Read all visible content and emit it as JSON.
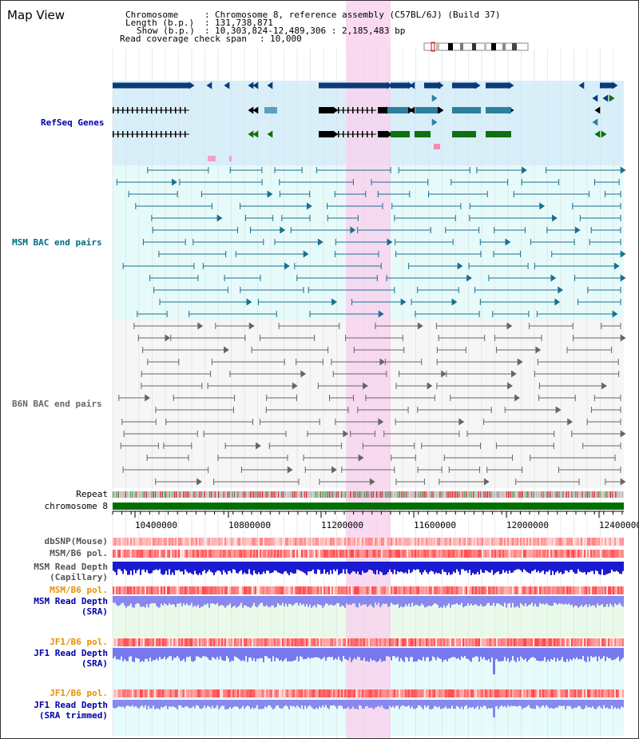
{
  "title": "Map View",
  "info": {
    "chromosome_label": "Chromosome",
    "chromosome_value": "Chromosome 8, reference assembly (C57BL/6J) (Build 37)",
    "length_label": "Length (b.p.)",
    "length_value": "131,738,871",
    "show_label": "Show (b.p.)",
    "show_value": "10,303,824-12,489,306 : 2,185,483 bp",
    "span_label": "Read coverage check span",
    "span_value": "10,000"
  },
  "tracks": {
    "refseq": "RefSeq Genes",
    "msm_bac": "MSM BAC end pairs",
    "b6n_bac": "B6N BAC end pairs",
    "repeat": "Repeat",
    "chromosome": "chromosome 8",
    "dbsnp": "dbSNP(Mouse)",
    "msm_b6_pol": "MSM/B6 pol.",
    "msm_depth_cap_1": "MSM Read Depth",
    "msm_depth_cap_2": "(Capillary)",
    "msm_b6_pol_sra": "MSM/B6 pol.",
    "msm_depth_sra_1": "MSM Read Depth",
    "msm_depth_sra_2": "(SRA)",
    "jf1_b6_pol": "JF1/B6 pol.",
    "jf1_depth_sra_1": "JF1 Read Depth",
    "jf1_depth_sra_2": "(SRA)",
    "jf1_b6_pol_trim": "JF1/B6 pol.",
    "jf1_depth_trim_1": "JF1 Read Depth",
    "jf1_depth_trim_2": "(SRA trimmed)"
  },
  "axis": {
    "ticks": [
      "10400000",
      "10800000",
      "11200000",
      "11600000",
      "12000000",
      "12400000"
    ]
  },
  "colors": {
    "navy": "#0b3a78",
    "teal": "#2e7ea0",
    "green": "#107010",
    "pink_highlight": "#f8d4ef",
    "refseq_bg": "#d8effa",
    "msm_bg": "#e6fafa",
    "b6n_bg": "#f6f6f6",
    "orange_label": "#e89000",
    "blue_label": "#0000aa"
  }
}
